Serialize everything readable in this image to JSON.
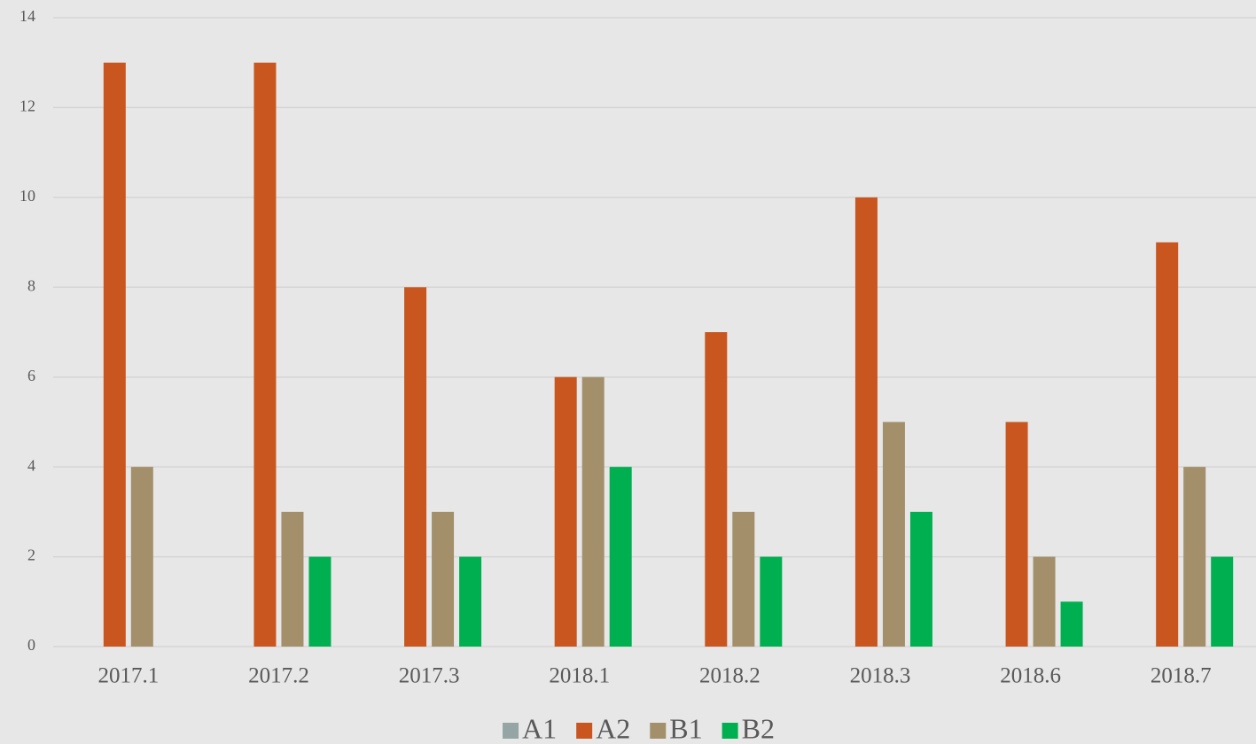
{
  "chart_data": {
    "type": "bar",
    "categories": [
      "2017.1",
      "2017.2",
      "2017.3",
      "2018.1",
      "2018.2",
      "2018.3",
      "2018.6",
      "2018.7"
    ],
    "series": [
      {
        "name": "A1",
        "color": "#95a5a6",
        "values": [
          0,
          0,
          0,
          0,
          0,
          0,
          0,
          0
        ]
      },
      {
        "name": "A2",
        "color": "#c9561f",
        "values": [
          13,
          13,
          8,
          6,
          7,
          10,
          5,
          9
        ]
      },
      {
        "name": "B1",
        "color": "#a38f6a",
        "values": [
          4,
          3,
          3,
          6,
          3,
          5,
          2,
          4
        ]
      },
      {
        "name": "B2",
        "color": "#00b050",
        "values": [
          0,
          2,
          2,
          4,
          2,
          3,
          1,
          2
        ]
      }
    ],
    "ylim": [
      0,
      14
    ],
    "yticks": [
      0,
      2,
      4,
      6,
      8,
      10,
      12,
      14
    ],
    "grid": true,
    "legend": "bottom"
  }
}
